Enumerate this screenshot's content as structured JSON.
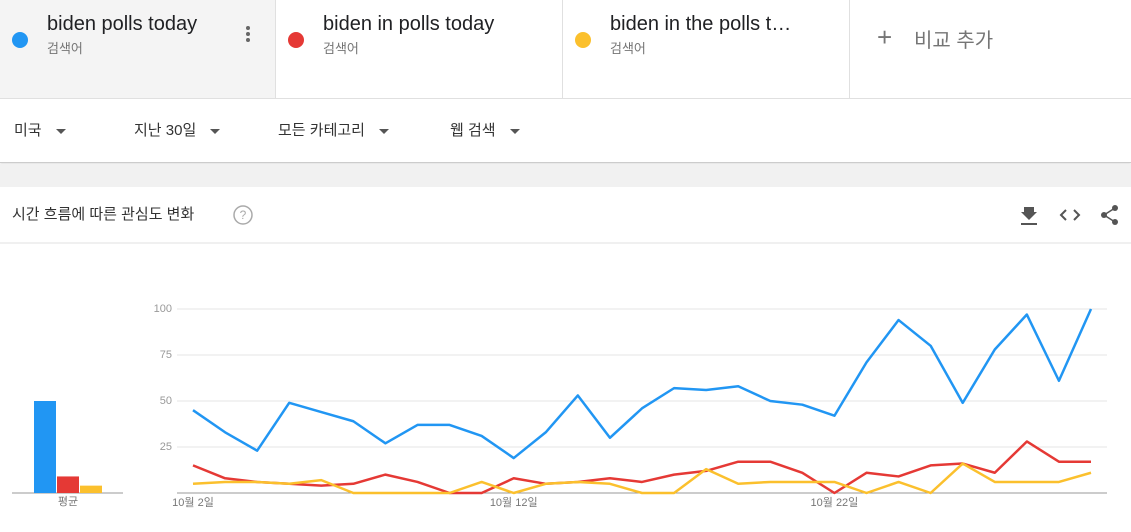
{
  "search_term_label": "검색어",
  "add_compare": "비교 추가",
  "filters": [
    "미국",
    "지난 30일",
    "모든 카테고리",
    "웹 검색"
  ],
  "chart_data": {
    "type": "line",
    "title": "시간 흐름에 따른 관심도 변화",
    "average_label": "평균",
    "categories": [
      "10월 2일",
      null,
      null,
      null,
      null,
      null,
      null,
      null,
      null,
      null,
      "10월 12일",
      null,
      null,
      null,
      null,
      null,
      null,
      null,
      null,
      null,
      "10월 22일",
      null,
      null,
      null,
      null,
      null,
      null,
      null,
      null
    ],
    "series": [
      {
        "name": "biden polls today",
        "color": "#2196f3",
        "average": 50,
        "values": [
          45,
          33,
          23,
          49,
          44,
          39,
          27,
          37,
          37,
          31,
          19,
          33,
          53,
          30,
          46,
          57,
          56,
          58,
          50,
          48,
          42,
          71,
          94,
          80,
          49,
          78,
          97,
          61,
          100
        ]
      },
      {
        "name": "biden in polls today",
        "color": "#e53935",
        "average": 9,
        "values": [
          15,
          8,
          6,
          5,
          4,
          5,
          10,
          6,
          0,
          0,
          8,
          5,
          6,
          8,
          6,
          10,
          12,
          17,
          17,
          11,
          0,
          11,
          9,
          15,
          16,
          11,
          28,
          17,
          17
        ]
      },
      {
        "name": "biden in the polls t…",
        "color": "#fbc02d",
        "average": 4,
        "values": [
          5,
          6,
          6,
          5,
          7,
          0,
          0,
          0,
          0,
          6,
          0,
          5,
          6,
          5,
          0,
          0,
          13,
          5,
          6,
          6,
          6,
          0,
          6,
          0,
          16,
          6,
          6,
          6,
          11
        ]
      }
    ],
    "ylim": [
      0,
      100
    ],
    "yticks": [
      25,
      50,
      75,
      100
    ],
    "grid": true
  }
}
